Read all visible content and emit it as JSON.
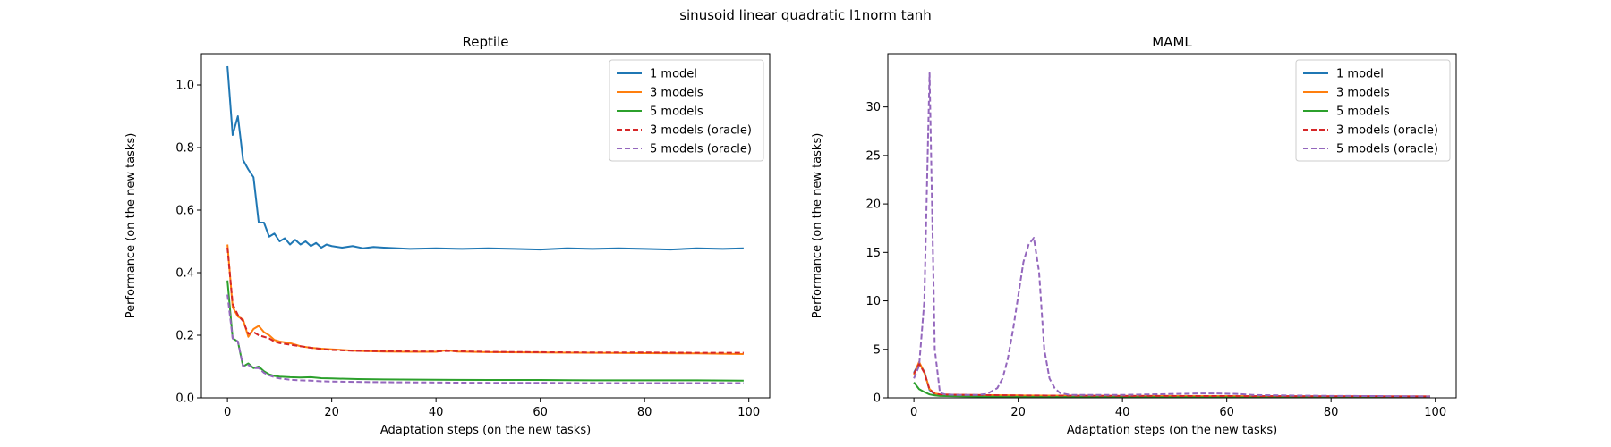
{
  "figure": {
    "suptitle": "sinusoid linear quadratic l1norm tanh"
  },
  "series_styles": [
    {
      "name": "1 model",
      "color": "#1f77b4",
      "dash": "solid"
    },
    {
      "name": "3 models",
      "color": "#ff7f0e",
      "dash": "solid"
    },
    {
      "name": "5 models",
      "color": "#2ca02c",
      "dash": "solid"
    },
    {
      "name": "3 models (oracle)",
      "color": "#d62728",
      "dash": "dashed"
    },
    {
      "name": "5 models (oracle)",
      "color": "#9467bd",
      "dash": "dashed"
    }
  ],
  "chart_data": [
    {
      "type": "line",
      "title": "Reptile",
      "xlabel": "Adaptation steps (on the new tasks)",
      "ylabel": "Performance (on the new tasks)",
      "xlim": [
        -5,
        104
      ],
      "ylim": [
        0,
        1.1
      ],
      "xticks": [
        0,
        20,
        40,
        60,
        80,
        100
      ],
      "yticks": [
        0.0,
        0.2,
        0.4,
        0.6,
        0.8,
        1.0
      ],
      "ytick_labels": [
        "0.0",
        "0.2",
        "0.4",
        "0.6",
        "0.8",
        "1.0"
      ],
      "legend": "top-right",
      "grid": false,
      "series": [
        {
          "name": "1 model",
          "points": [
            [
              0,
              1.06
            ],
            [
              1,
              0.84
            ],
            [
              2,
              0.9
            ],
            [
              3,
              0.76
            ],
            [
              4,
              0.73
            ],
            [
              5,
              0.705
            ],
            [
              6,
              0.56
            ],
            [
              7,
              0.56
            ],
            [
              8,
              0.515
            ],
            [
              9,
              0.525
            ],
            [
              10,
              0.5
            ],
            [
              11,
              0.51
            ],
            [
              12,
              0.49
            ],
            [
              13,
              0.505
            ],
            [
              14,
              0.49
            ],
            [
              15,
              0.5
            ],
            [
              16,
              0.485
            ],
            [
              17,
              0.495
            ],
            [
              18,
              0.48
            ],
            [
              19,
              0.49
            ],
            [
              20,
              0.485
            ],
            [
              22,
              0.48
            ],
            [
              24,
              0.485
            ],
            [
              26,
              0.478
            ],
            [
              28,
              0.482
            ],
            [
              30,
              0.48
            ],
            [
              35,
              0.476
            ],
            [
              40,
              0.478
            ],
            [
              45,
              0.476
            ],
            [
              50,
              0.478
            ],
            [
              55,
              0.476
            ],
            [
              60,
              0.474
            ],
            [
              65,
              0.478
            ],
            [
              70,
              0.476
            ],
            [
              75,
              0.478
            ],
            [
              80,
              0.476
            ],
            [
              85,
              0.474
            ],
            [
              90,
              0.478
            ],
            [
              95,
              0.476
            ],
            [
              99,
              0.478
            ]
          ]
        },
        {
          "name": "3 models",
          "points": [
            [
              0,
              0.49
            ],
            [
              1,
              0.29
            ],
            [
              2,
              0.26
            ],
            [
              3,
              0.25
            ],
            [
              4,
              0.195
            ],
            [
              5,
              0.22
            ],
            [
              6,
              0.23
            ],
            [
              7,
              0.21
            ],
            [
              8,
              0.2
            ],
            [
              9,
              0.185
            ],
            [
              10,
              0.18
            ],
            [
              12,
              0.175
            ],
            [
              14,
              0.165
            ],
            [
              16,
              0.16
            ],
            [
              18,
              0.157
            ],
            [
              20,
              0.155
            ],
            [
              25,
              0.15
            ],
            [
              30,
              0.148
            ],
            [
              35,
              0.147
            ],
            [
              40,
              0.147
            ],
            [
              42,
              0.152
            ],
            [
              44,
              0.148
            ],
            [
              50,
              0.146
            ],
            [
              60,
              0.145
            ],
            [
              70,
              0.144
            ],
            [
              80,
              0.143
            ],
            [
              90,
              0.142
            ],
            [
              99,
              0.14
            ]
          ]
        },
        {
          "name": "5 models",
          "points": [
            [
              0,
              0.375
            ],
            [
              1,
              0.19
            ],
            [
              2,
              0.18
            ],
            [
              3,
              0.1
            ],
            [
              4,
              0.11
            ],
            [
              5,
              0.095
            ],
            [
              6,
              0.1
            ],
            [
              7,
              0.085
            ],
            [
              8,
              0.075
            ],
            [
              9,
              0.07
            ],
            [
              10,
              0.068
            ],
            [
              12,
              0.066
            ],
            [
              14,
              0.065
            ],
            [
              16,
              0.066
            ],
            [
              18,
              0.063
            ],
            [
              20,
              0.062
            ],
            [
              25,
              0.06
            ],
            [
              30,
              0.059
            ],
            [
              40,
              0.058
            ],
            [
              50,
              0.057
            ],
            [
              60,
              0.057
            ],
            [
              70,
              0.056
            ],
            [
              80,
              0.056
            ],
            [
              90,
              0.056
            ],
            [
              99,
              0.055
            ]
          ]
        },
        {
          "name": "3 models (oracle)",
          "points": [
            [
              0,
              0.48
            ],
            [
              1,
              0.3
            ],
            [
              2,
              0.265
            ],
            [
              3,
              0.245
            ],
            [
              4,
              0.205
            ],
            [
              5,
              0.21
            ],
            [
              6,
              0.2
            ],
            [
              7,
              0.195
            ],
            [
              8,
              0.19
            ],
            [
              9,
              0.18
            ],
            [
              10,
              0.175
            ],
            [
              12,
              0.17
            ],
            [
              14,
              0.165
            ],
            [
              16,
              0.16
            ],
            [
              18,
              0.156
            ],
            [
              20,
              0.153
            ],
            [
              25,
              0.15
            ],
            [
              30,
              0.149
            ],
            [
              40,
              0.148
            ],
            [
              42,
              0.15
            ],
            [
              50,
              0.147
            ],
            [
              60,
              0.146
            ],
            [
              70,
              0.145
            ],
            [
              80,
              0.145
            ],
            [
              90,
              0.144
            ],
            [
              99,
              0.144
            ]
          ]
        },
        {
          "name": "5 models (oracle)",
          "points": [
            [
              0,
              0.33
            ],
            [
              1,
              0.19
            ],
            [
              2,
              0.18
            ],
            [
              3,
              0.1
            ],
            [
              4,
              0.105
            ],
            [
              5,
              0.095
            ],
            [
              6,
              0.095
            ],
            [
              7,
              0.08
            ],
            [
              8,
              0.072
            ],
            [
              9,
              0.066
            ],
            [
              10,
              0.062
            ],
            [
              12,
              0.058
            ],
            [
              14,
              0.056
            ],
            [
              16,
              0.055
            ],
            [
              18,
              0.053
            ],
            [
              20,
              0.052
            ],
            [
              25,
              0.051
            ],
            [
              30,
              0.05
            ],
            [
              40,
              0.049
            ],
            [
              50,
              0.048
            ],
            [
              60,
              0.048
            ],
            [
              70,
              0.047
            ],
            [
              80,
              0.047
            ],
            [
              90,
              0.047
            ],
            [
              99,
              0.047
            ]
          ]
        }
      ]
    },
    {
      "type": "line",
      "title": "MAML",
      "xlabel": "Adaptation steps (on the new tasks)",
      "ylabel": "Performance (on the new tasks)",
      "xlim": [
        -5,
        104
      ],
      "ylim": [
        0,
        35.5
      ],
      "xticks": [
        0,
        20,
        40,
        60,
        80,
        100
      ],
      "yticks": [
        0,
        5,
        10,
        15,
        20,
        25,
        30
      ],
      "ytick_labels": [
        "0",
        "5",
        "10",
        "15",
        "20",
        "25",
        "30"
      ],
      "legend": "top-right",
      "grid": false,
      "series": [
        {
          "name": "1 model",
          "points": [
            [
              0,
              2.6
            ],
            [
              1,
              3.6
            ],
            [
              2,
              2.7
            ],
            [
              3,
              0.8
            ],
            [
              4,
              0.4
            ],
            [
              5,
              0.3
            ],
            [
              10,
              0.25
            ],
            [
              20,
              0.2
            ],
            [
              40,
              0.15
            ],
            [
              60,
              0.12
            ],
            [
              80,
              0.1
            ],
            [
              99,
              0.1
            ]
          ]
        },
        {
          "name": "3 models",
          "points": [
            [
              0,
              2.4
            ],
            [
              1,
              3.7
            ],
            [
              2,
              2.6
            ],
            [
              3,
              0.9
            ],
            [
              4,
              0.45
            ],
            [
              5,
              0.35
            ],
            [
              10,
              0.3
            ],
            [
              20,
              0.25
            ],
            [
              40,
              0.2
            ],
            [
              60,
              0.18
            ],
            [
              80,
              0.15
            ],
            [
              99,
              0.15
            ]
          ]
        },
        {
          "name": "5 models",
          "points": [
            [
              0,
              1.6
            ],
            [
              1,
              0.9
            ],
            [
              2,
              0.6
            ],
            [
              3,
              0.35
            ],
            [
              4,
              0.25
            ],
            [
              5,
              0.2
            ],
            [
              10,
              0.15
            ],
            [
              20,
              0.1
            ],
            [
              40,
              0.08
            ],
            [
              60,
              0.06
            ],
            [
              80,
              0.05
            ],
            [
              99,
              0.05
            ]
          ]
        },
        {
          "name": "3 models (oracle)",
          "points": [
            [
              0,
              2.5
            ],
            [
              1,
              3.5
            ],
            [
              2,
              2.6
            ],
            [
              3,
              0.85
            ],
            [
              4,
              0.45
            ],
            [
              5,
              0.35
            ],
            [
              10,
              0.3
            ],
            [
              20,
              0.25
            ],
            [
              40,
              0.2
            ],
            [
              60,
              0.18
            ],
            [
              80,
              0.16
            ],
            [
              99,
              0.15
            ]
          ]
        },
        {
          "name": "5 models (oracle)",
          "points": [
            [
              0,
              2.0
            ],
            [
              1,
              3.3
            ],
            [
              2,
              10.0
            ],
            [
              3,
              33.5
            ],
            [
              4,
              5.0
            ],
            [
              5,
              0.5
            ],
            [
              6,
              0.35
            ],
            [
              8,
              0.3
            ],
            [
              10,
              0.3
            ],
            [
              12,
              0.3
            ],
            [
              14,
              0.4
            ],
            [
              16,
              1.0
            ],
            [
              17,
              2.0
            ],
            [
              18,
              4.0
            ],
            [
              19,
              7.0
            ],
            [
              20,
              10.5
            ],
            [
              21,
              14.0
            ],
            [
              22,
              15.8
            ],
            [
              23,
              16.5
            ],
            [
              24,
              13.0
            ],
            [
              25,
              5.0
            ],
            [
              26,
              2.0
            ],
            [
              27,
              1.0
            ],
            [
              28,
              0.5
            ],
            [
              30,
              0.3
            ],
            [
              40,
              0.3
            ],
            [
              45,
              0.35
            ],
            [
              50,
              0.4
            ],
            [
              55,
              0.45
            ],
            [
              58,
              0.45
            ],
            [
              62,
              0.4
            ],
            [
              65,
              0.3
            ],
            [
              70,
              0.25
            ],
            [
              80,
              0.2
            ],
            [
              90,
              0.18
            ],
            [
              99,
              0.15
            ]
          ]
        }
      ]
    }
  ]
}
